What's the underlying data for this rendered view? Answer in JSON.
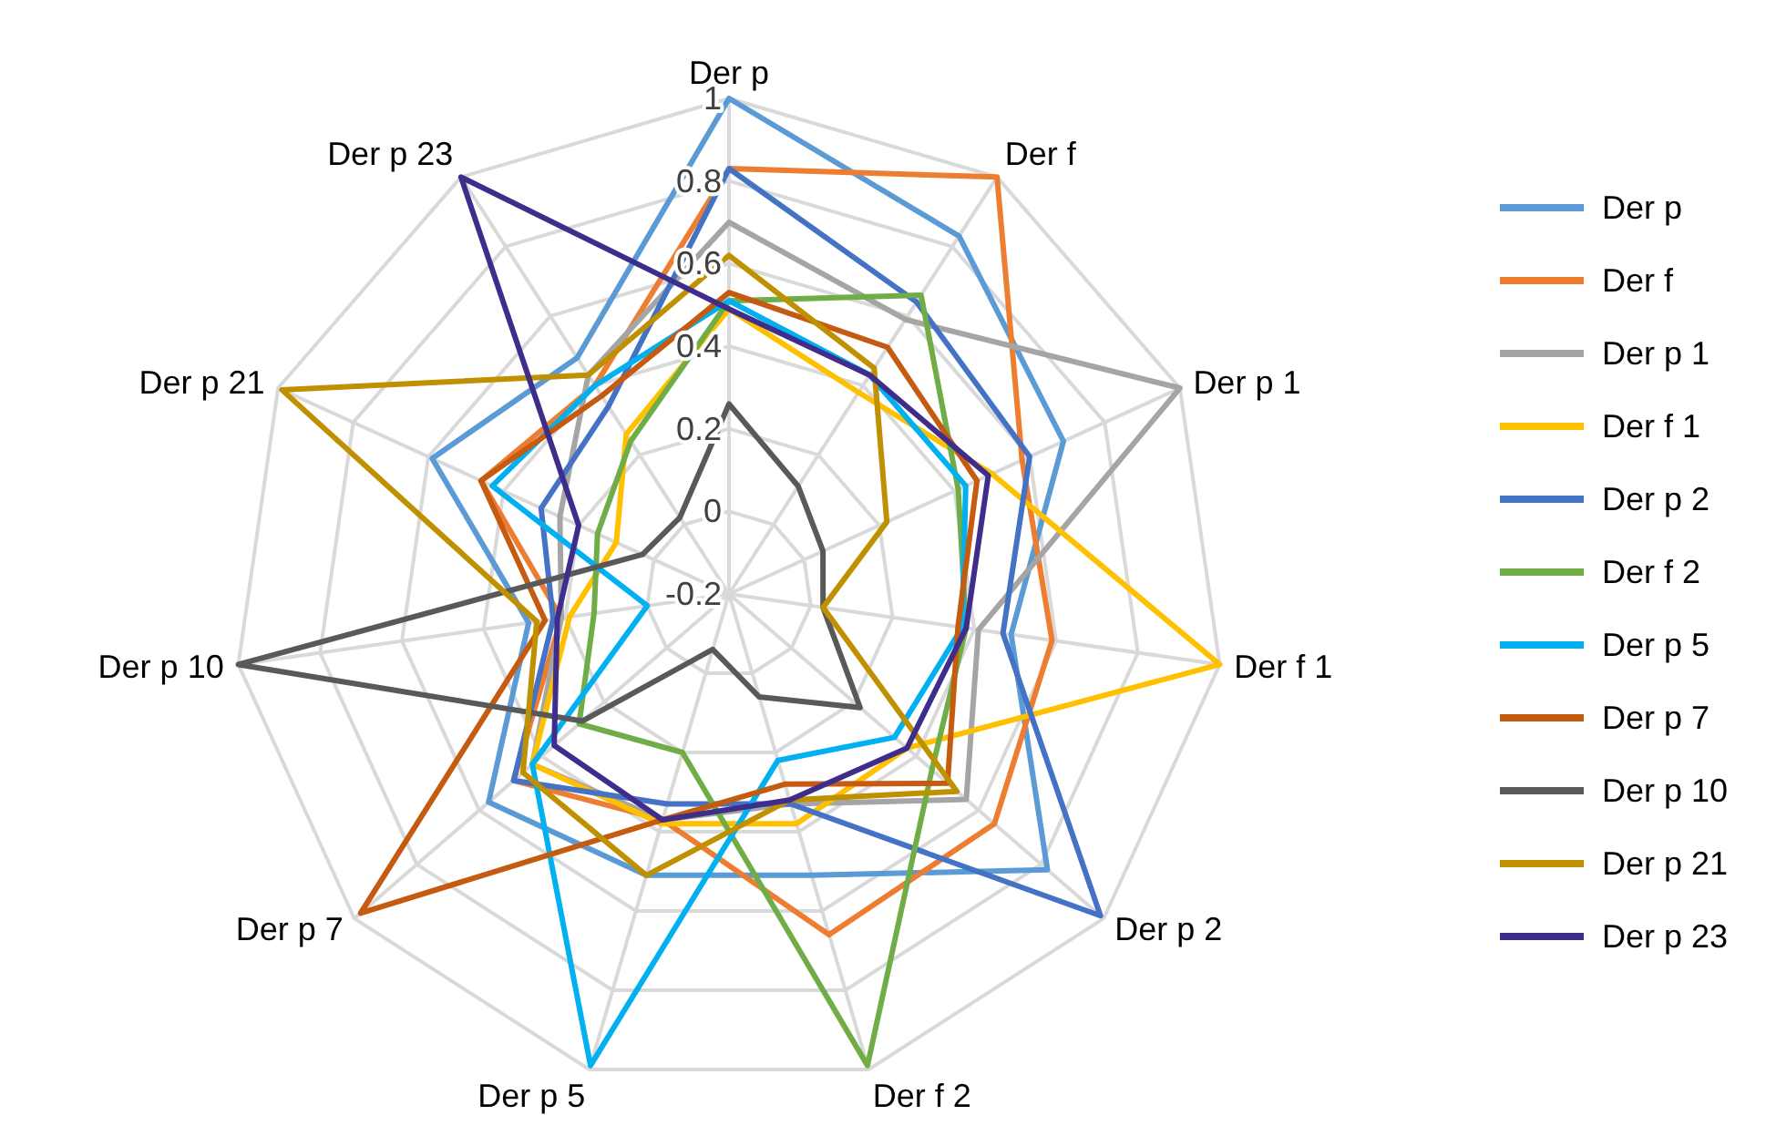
{
  "chart_data": {
    "type": "radar",
    "categories": [
      "Der p",
      "Der f",
      "Der p 1",
      "Der f 1",
      "Der p 2",
      "Der f 2",
      "Der p 5",
      "Der p 7",
      "Der p 10",
      "Der p 21",
      "Der p 23"
    ],
    "ylim": [
      -0.2,
      1
    ],
    "yticks": [
      -0.2,
      0,
      0.2,
      0.4,
      0.6,
      0.8,
      1
    ],
    "grid": true,
    "legend": "right",
    "marker": "none",
    "series": [
      {
        "name": "Der p",
        "color": "#5b9bd5",
        "values": [
          1.0,
          0.83,
          0.69,
          0.49,
          0.82,
          0.51,
          0.51,
          0.57,
          0.29,
          0.59,
          0.48
        ]
      },
      {
        "name": "Der f",
        "color": "#ed7d31",
        "values": [
          0.83,
          1.0,
          0.58,
          0.59,
          0.65,
          0.66,
          0.37,
          0.49,
          0.21,
          0.46,
          0.4
        ]
      },
      {
        "name": "Der p 1",
        "color": "#a5a5a5",
        "values": [
          0.7,
          0.59,
          1.0,
          0.41,
          0.56,
          0.33,
          0.37,
          0.43,
          0.21,
          0.25,
          0.43
        ]
      },
      {
        "name": "Der f 1",
        "color": "#ffc000",
        "values": [
          0.49,
          0.38,
          0.5,
          1.0,
          0.37,
          0.38,
          0.38,
          0.43,
          0.19,
          0.1,
          0.26
        ]
      },
      {
        "name": "Der p 2",
        "color": "#4472c4",
        "values": [
          0.83,
          0.64,
          0.6,
          0.47,
          0.99,
          0.33,
          0.33,
          0.49,
          0.23,
          0.3,
          0.34
        ]
      },
      {
        "name": "Der f 2",
        "color": "#70ad47",
        "values": [
          0.51,
          0.66,
          0.41,
          0.38,
          0.45,
          0.99,
          0.2,
          0.28,
          0.13,
          0.15,
          0.24
        ]
      },
      {
        "name": "Der p 5",
        "color": "#00b0f0",
        "values": [
          0.51,
          0.43,
          0.43,
          0.37,
          0.33,
          0.22,
          0.99,
          0.43,
          0.0,
          0.43,
          0.4
        ]
      },
      {
        "name": "Der p 7",
        "color": "#c55a11",
        "values": [
          0.53,
          0.51,
          0.46,
          0.36,
          0.5,
          0.28,
          0.37,
          0.98,
          0.25,
          0.46,
          0.37
        ]
      },
      {
        "name": "Der p 10",
        "color": "#595959",
        "values": [
          0.26,
          0.11,
          0.05,
          0.03,
          0.22,
          0.06,
          -0.06,
          0.27,
          1.0,
          0.03,
          0.02
        ]
      },
      {
        "name": "Der p 21",
        "color": "#bf9000",
        "values": [
          0.62,
          0.45,
          0.22,
          0.03,
          0.53,
          0.32,
          0.51,
          0.46,
          0.27,
          0.99,
          0.43
        ]
      },
      {
        "name": "Der p 23",
        "color": "#3f2d8c",
        "values": [
          0.49,
          0.43,
          0.49,
          0.38,
          0.37,
          0.32,
          0.37,
          0.36,
          0.22,
          0.2,
          1.0
        ]
      }
    ]
  }
}
